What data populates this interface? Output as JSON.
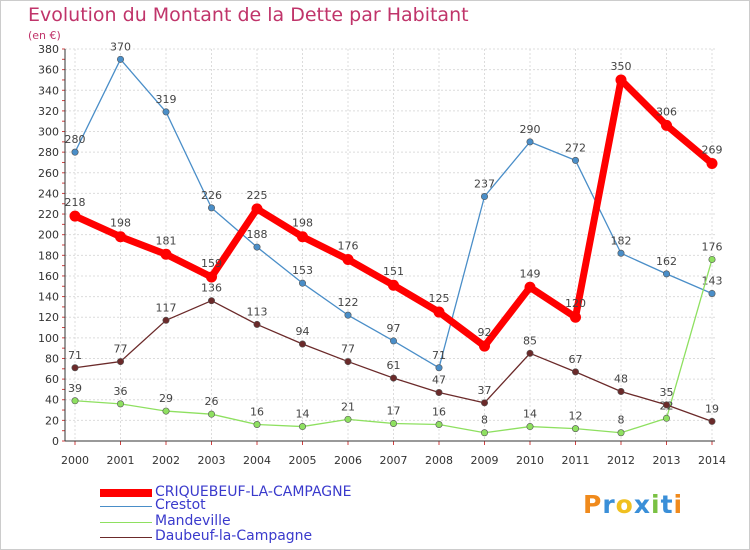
{
  "chart_data": {
    "type": "line",
    "title": "Evolution du Montant de la Dette par Habitant",
    "unit": "(en €)",
    "xlabel": "",
    "ylabel": "",
    "ylim": [
      0,
      380
    ],
    "ytick_step": 20,
    "grid": true,
    "categories": [
      "2000",
      "2001",
      "2002",
      "2003",
      "2004",
      "2005",
      "2006",
      "2007",
      "2008",
      "2009",
      "2010",
      "2011",
      "2012",
      "2013",
      "2014"
    ],
    "series": [
      {
        "name": "CRIQUEBEUF-LA-CAMPAGNE",
        "color": "#ff0000",
        "values": [
          218,
          198,
          181,
          159,
          225,
          198,
          176,
          151,
          125,
          92,
          149,
          120,
          350,
          306,
          269
        ]
      },
      {
        "name": "Crestot",
        "color": "#4a8ec8",
        "values": [
          280,
          370,
          319,
          226,
          188,
          153,
          122,
          97,
          71,
          237,
          290,
          272,
          182,
          162,
          143
        ]
      },
      {
        "name": "Mandeville",
        "color": "#8ee060",
        "values": [
          39,
          36,
          29,
          26,
          16,
          14,
          21,
          17,
          16,
          8,
          14,
          12,
          8,
          22,
          176
        ]
      },
      {
        "name": "Daubeuf-la-Campagne",
        "color": "#6b2a2a",
        "values": [
          71,
          77,
          117,
          136,
          113,
          94,
          77,
          61,
          47,
          37,
          85,
          67,
          48,
          35,
          19
        ]
      }
    ]
  },
  "brand": {
    "logo_text": "Proxiti",
    "colors": [
      "#f08a1c",
      "#3a8fd8",
      "#f0c020",
      "#3a8fd8",
      "#7ac143",
      "#3a8fd8",
      "#f08a1c"
    ]
  }
}
